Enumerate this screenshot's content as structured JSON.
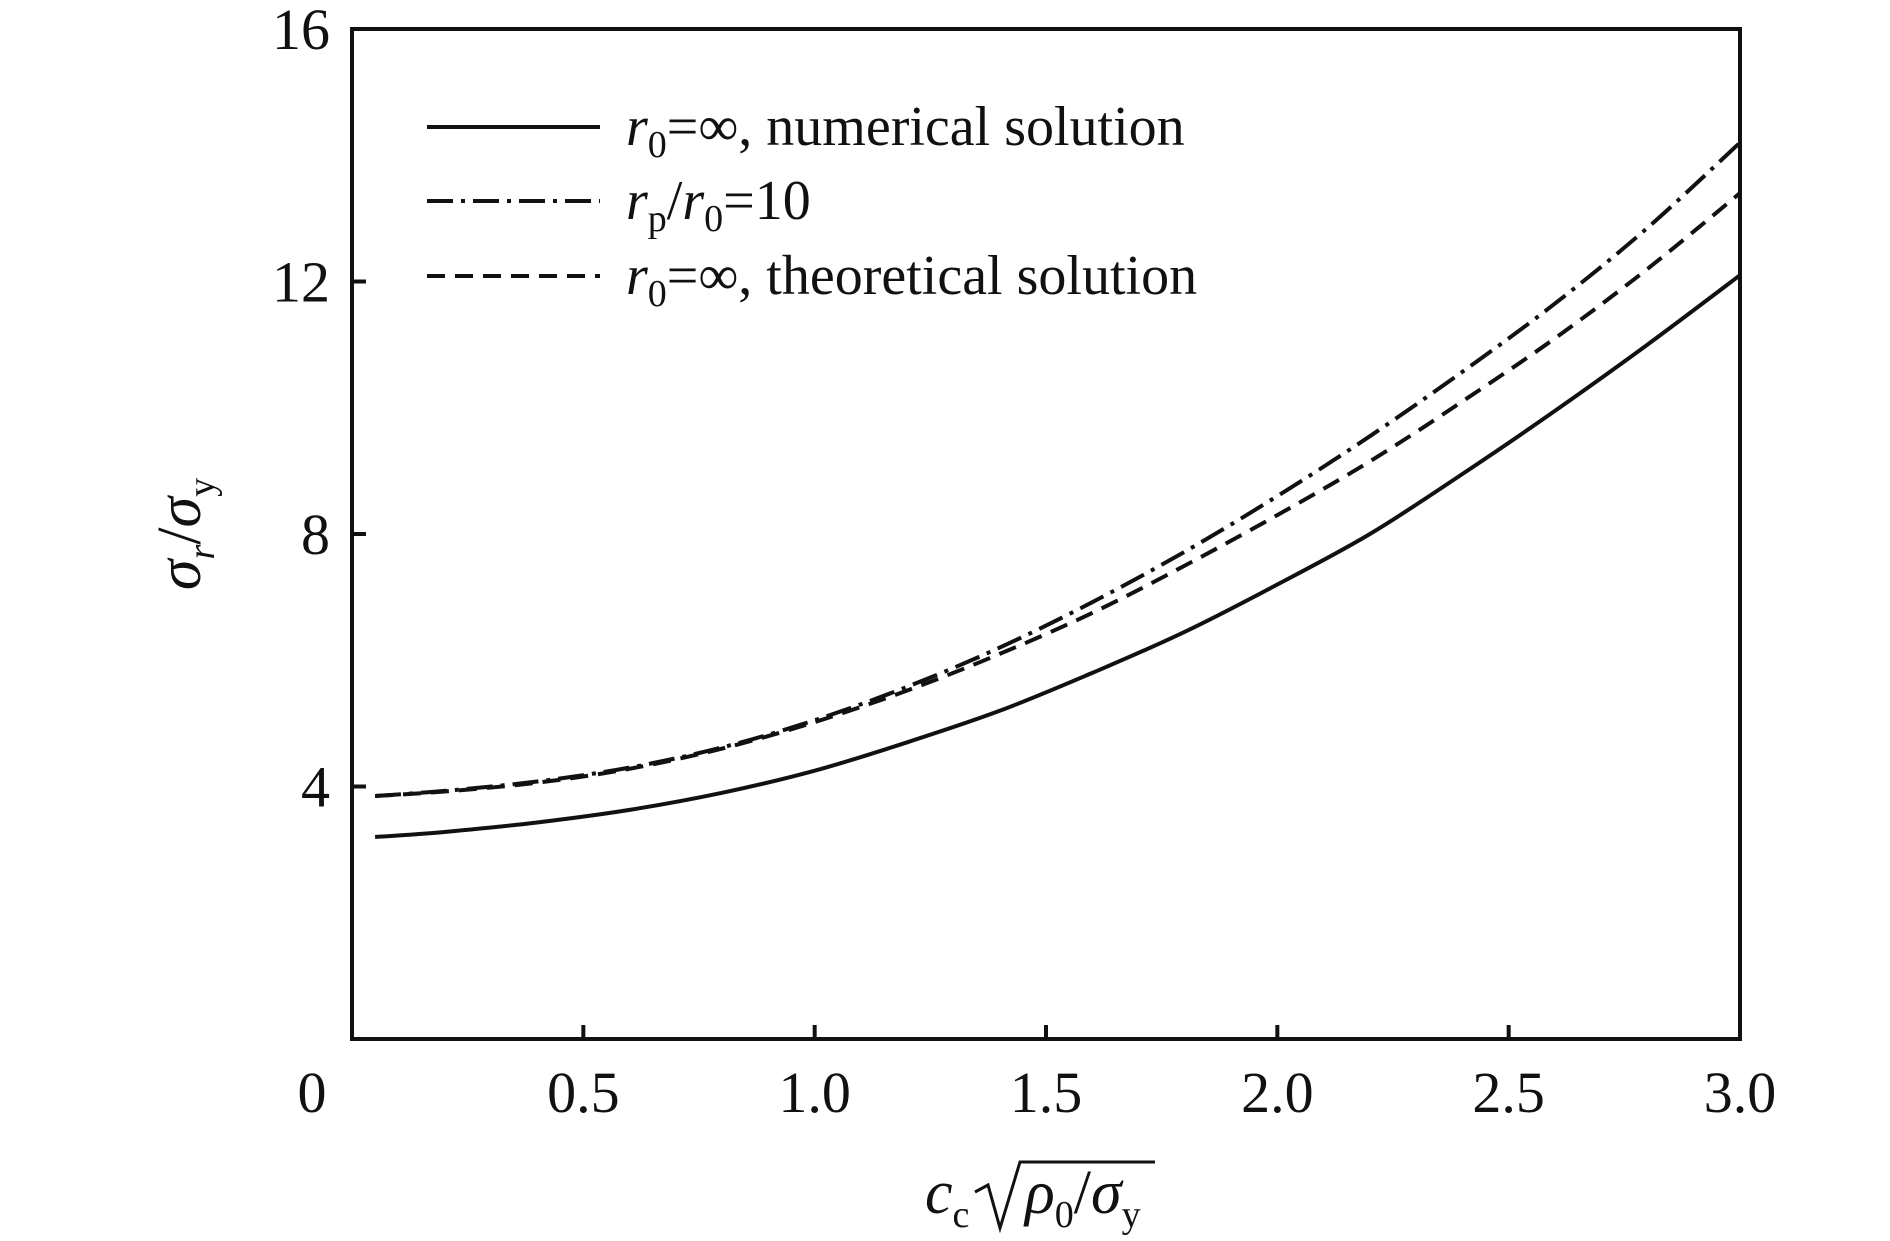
{
  "chart_data": {
    "type": "line",
    "xlim": [
      0,
      3.0
    ],
    "ylim": [
      0,
      16
    ],
    "x_ticks": [
      {
        "value": 0,
        "label": "0"
      },
      {
        "value": 0.5,
        "label": "0.5"
      },
      {
        "value": 1.0,
        "label": "1.0"
      },
      {
        "value": 1.5,
        "label": "1.5"
      },
      {
        "value": 2.0,
        "label": "2.0"
      },
      {
        "value": 2.5,
        "label": "2.5"
      },
      {
        "value": 3.0,
        "label": "3.0"
      }
    ],
    "y_ticks": [
      {
        "value": 4,
        "label": "4"
      },
      {
        "value": 8,
        "label": "8"
      },
      {
        "value": 12,
        "label": "12"
      },
      {
        "value": 16,
        "label": "16"
      }
    ],
    "x_origin_label": "0",
    "grid": false,
    "legend_position": "top-left",
    "xlabel": {
      "c": "c",
      "c_sub": "c",
      "rho": "ρ",
      "rho_sub": "0",
      "slash": "/",
      "sigma": "σ",
      "sigma_sub": "y"
    },
    "ylabel": {
      "sigma1": "σ",
      "sub1": "r",
      "slash": "/",
      "sigma2": "σ",
      "sub2": "y"
    },
    "series": [
      {
        "legend": {
          "var": "r",
          "sub": "0",
          "rest": "=∞, numerical solution"
        },
        "style": "solid",
        "x": [
          0.05,
          0.2,
          0.4,
          0.6,
          0.8,
          1.0,
          1.2,
          1.4,
          1.6,
          1.8,
          2.0,
          2.2,
          2.4,
          2.6,
          2.8,
          3.0
        ],
        "y": [
          3.2,
          3.28,
          3.43,
          3.63,
          3.9,
          4.25,
          4.7,
          5.2,
          5.8,
          6.45,
          7.2,
          8.0,
          8.95,
          9.95,
          11.0,
          12.1
        ]
      },
      {
        "legend": {
          "var1": "r",
          "sub1": "p",
          "slash": "/",
          "var2": "r",
          "sub2": "0",
          "rest": "=10"
        },
        "style": "dash-dot",
        "x": [
          0.05,
          0.2,
          0.4,
          0.6,
          0.8,
          1.0,
          1.2,
          1.4,
          1.6,
          1.8,
          2.0,
          2.2,
          2.4,
          2.6,
          2.8,
          3.0
        ],
        "y": [
          3.85,
          3.93,
          4.08,
          4.3,
          4.62,
          5.05,
          5.58,
          6.2,
          6.92,
          7.72,
          8.6,
          9.55,
          10.57,
          11.65,
          12.85,
          14.2
        ]
      },
      {
        "legend": {
          "var": "r",
          "sub": "0",
          "rest": "=∞, theoretical solution"
        },
        "style": "dashed",
        "x": [
          0.05,
          0.2,
          0.4,
          0.6,
          0.8,
          1.0,
          1.2,
          1.4,
          1.6,
          1.8,
          2.0,
          2.2,
          2.4,
          2.6,
          2.8,
          3.0
        ],
        "y": [
          3.85,
          3.92,
          4.06,
          4.28,
          4.6,
          5.02,
          5.52,
          6.1,
          6.75,
          7.5,
          8.3,
          9.15,
          10.1,
          11.1,
          12.2,
          13.4
        ]
      }
    ]
  }
}
